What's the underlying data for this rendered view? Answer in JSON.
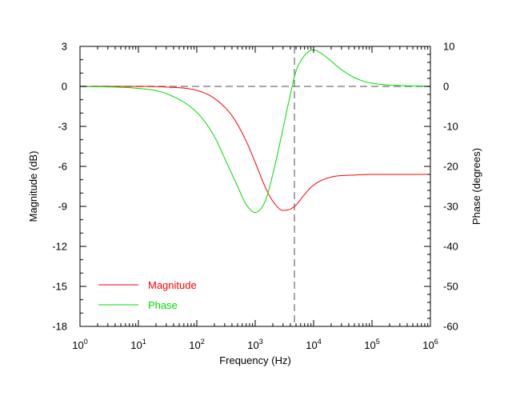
{
  "chart_data": {
    "type": "line",
    "xlabel": "Frequency (Hz)",
    "ylabel": "Magnitude (dB)",
    "y2label": "Phase (degrees)",
    "x_scale": "log",
    "xlim": [
      1,
      1000000
    ],
    "ylim": [
      -18,
      3
    ],
    "y2lim": [
      -60,
      10
    ],
    "x_ticks": [
      {
        "base": "10",
        "exp": "0"
      },
      {
        "base": "10",
        "exp": "1"
      },
      {
        "base": "10",
        "exp": "2"
      },
      {
        "base": "10",
        "exp": "3"
      },
      {
        "base": "10",
        "exp": "4"
      },
      {
        "base": "10",
        "exp": "5"
      },
      {
        "base": "10",
        "exp": "6"
      }
    ],
    "y_ticks": [
      "3",
      "0",
      "-3",
      "-6",
      "-9",
      "-12",
      "-15",
      "-18"
    ],
    "y2_ticks": [
      "10",
      "0",
      "-10",
      "-20",
      "-30",
      "-40",
      "-50",
      "-60"
    ],
    "reference_lines": [
      {
        "orientation": "horizontal",
        "value": 0,
        "style": "dashed",
        "color": "#888888"
      },
      {
        "orientation": "vertical",
        "value": 4700,
        "style": "dashed",
        "color": "#888888"
      }
    ],
    "legend_position": "bottom-left",
    "series": [
      {
        "name": "Magnitude",
        "color": "#ff0000",
        "axis": "left",
        "x": [
          1,
          10,
          30,
          100,
          200,
          400,
          700,
          1000,
          1500,
          2000,
          3000,
          4000,
          5000,
          7000,
          10000,
          20000,
          50000,
          100000,
          1000000
        ],
        "y": [
          0,
          0,
          -0.05,
          -0.3,
          -0.9,
          -2.2,
          -4.1,
          -5.7,
          -7.6,
          -8.6,
          -9.3,
          -9.2,
          -8.9,
          -8.1,
          -7.4,
          -6.8,
          -6.65,
          -6.6,
          -6.6
        ]
      },
      {
        "name": "Phase",
        "color": "#00dd00",
        "axis": "right",
        "x": [
          1,
          10,
          30,
          100,
          200,
          300,
          500,
          700,
          1000,
          1500,
          2000,
          3000,
          4000,
          5000,
          6000,
          8000,
          10000,
          15000,
          20000,
          30000,
          50000,
          100000,
          1000000
        ],
        "y": [
          0,
          -0.5,
          -1.8,
          -6.5,
          -12.5,
          -18,
          -25,
          -29.5,
          -31.5,
          -28.5,
          -22,
          -10.5,
          -2,
          3.8,
          6.3,
          8.6,
          9.1,
          7.8,
          6.3,
          4.2,
          2.2,
          0.8,
          0
        ]
      }
    ]
  }
}
